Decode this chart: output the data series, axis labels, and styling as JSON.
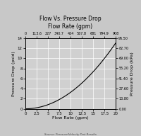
{
  "title_line1": "Flow Vs. Pressure Drop",
  "title_line2": "Flow Rate (gpm)",
  "xlabel_bottom": "Flow Rate (gpm)",
  "ylabel_left": "Pressure Drop (psid)",
  "ylabel_right": "Pressure Drop (kPa)",
  "x_bottom_min": 0,
  "x_bottom_max": 20,
  "x_top_min": 0,
  "x_top_max": 4542,
  "y_left_min": 0,
  "y_left_max": 14,
  "y_right_min": 0,
  "y_right_max": 96.5,
  "x_bottom_ticks": [
    0,
    2.5,
    5,
    7.5,
    10,
    12.5,
    15,
    17.5,
    20
  ],
  "x_top_ticks": [
    0,
    568,
    1136,
    1704,
    2272,
    2840,
    3408,
    3976,
    4544
  ],
  "x_top_labels": [
    "0",
    "113.6",
    "227",
    "340.7",
    "454",
    "567.8",
    "681",
    "794.9",
    "908"
  ],
  "y_left_ticks": [
    0,
    2,
    4,
    6,
    8,
    10,
    12,
    14
  ],
  "y_right_ticks": [
    0,
    13.8,
    27.6,
    41.4,
    55.2,
    69.0,
    82.7,
    96.5
  ],
  "y_right_labels": [
    "0.00",
    "13.80",
    "27.60",
    "41.40",
    "55.20",
    "69.00",
    "82.70",
    "96.50"
  ],
  "background_color": "#d0d0d0",
  "fig_background_color": "#c8c8c8",
  "line_color": "#000000",
  "grid_color": "#ffffff",
  "source_text": "Source: Pressure/Velocity Test Results",
  "curve_power": 2.0,
  "curve_scale": 0.0325,
  "title_fontsize": 5.5,
  "tick_fontsize": 4.0,
  "label_fontsize": 4.5
}
